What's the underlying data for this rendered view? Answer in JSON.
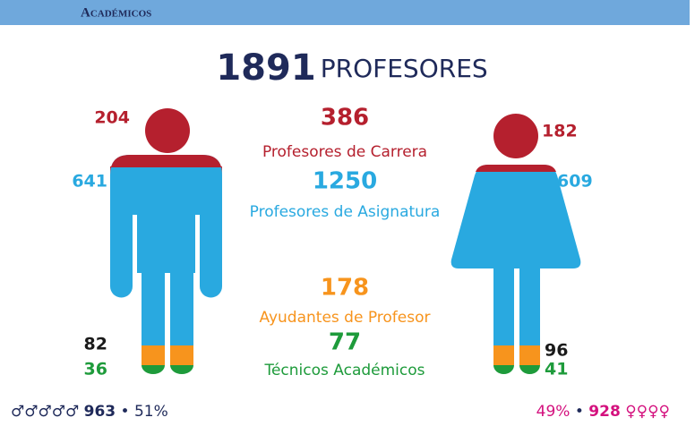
{
  "header": {
    "title": "Académicos"
  },
  "total": {
    "value": 1891,
    "label": "PROFESORES"
  },
  "categories": [
    {
      "value": 386,
      "label": "Profesores de Carrera",
      "male": 204,
      "female": 182
    },
    {
      "value": 1250,
      "label": "Profesores de Asignatura",
      "male": 641,
      "female": 609
    },
    {
      "value": 178,
      "label": "Ayudantes de Profesor",
      "male": 82,
      "female": 96
    },
    {
      "value": 77,
      "label": "Técnicos Académicos",
      "male": 36,
      "female": 41
    }
  ],
  "footer": {
    "male": {
      "symbols": "♂♂♂♂♂",
      "count": 963,
      "separator": "•",
      "percent": "51%"
    },
    "female": {
      "percent": "49%",
      "separator": "•",
      "count": 928,
      "symbols": "♀♀♀♀"
    }
  }
}
